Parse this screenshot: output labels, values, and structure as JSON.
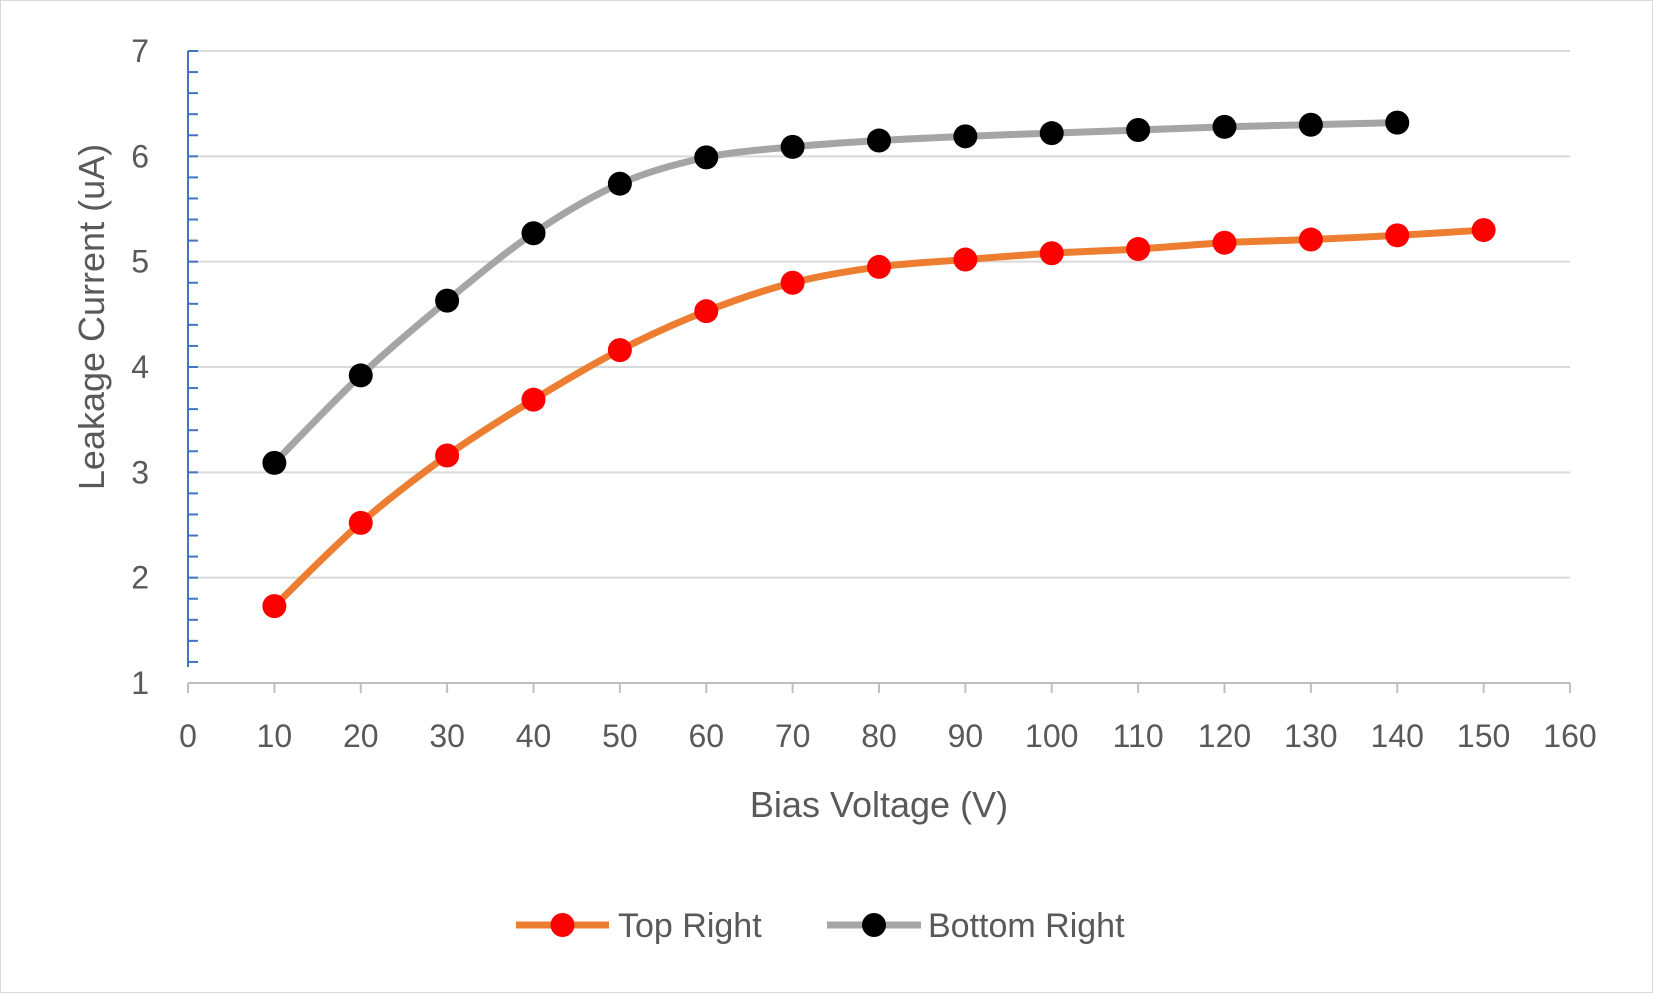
{
  "chart_data": {
    "type": "line",
    "title": "",
    "xlabel": "Bias Voltage (V)",
    "ylabel": "Leakage Current (uA)",
    "xlim": [
      0,
      160
    ],
    "ylim": [
      1,
      7
    ],
    "xticks": [
      0,
      10,
      20,
      30,
      40,
      50,
      60,
      70,
      80,
      90,
      100,
      110,
      120,
      130,
      140,
      150,
      160
    ],
    "yticks": [
      1,
      2,
      3,
      4,
      5,
      6,
      7
    ],
    "grid": true,
    "legend_position": "bottom",
    "series": [
      {
        "name": "Top Right",
        "line_color": "#ED7D31",
        "marker_color": "#FF0000",
        "x": [
          10,
          20,
          30,
          40,
          50,
          60,
          70,
          80,
          90,
          100,
          110,
          120,
          130,
          140,
          150
        ],
        "y": [
          1.73,
          2.52,
          3.16,
          3.69,
          4.16,
          4.53,
          4.8,
          4.95,
          5.02,
          5.08,
          5.12,
          5.18,
          5.21,
          5.25,
          5.3
        ]
      },
      {
        "name": "Bottom Right",
        "line_color": "#A5A5A5",
        "marker_color": "#000000",
        "x": [
          10,
          20,
          30,
          40,
          50,
          60,
          70,
          80,
          90,
          100,
          110,
          120,
          130,
          140
        ],
        "y": [
          3.09,
          3.92,
          4.63,
          5.27,
          5.74,
          5.99,
          6.09,
          6.15,
          6.19,
          6.22,
          6.25,
          6.28,
          6.3,
          6.32
        ]
      }
    ]
  }
}
